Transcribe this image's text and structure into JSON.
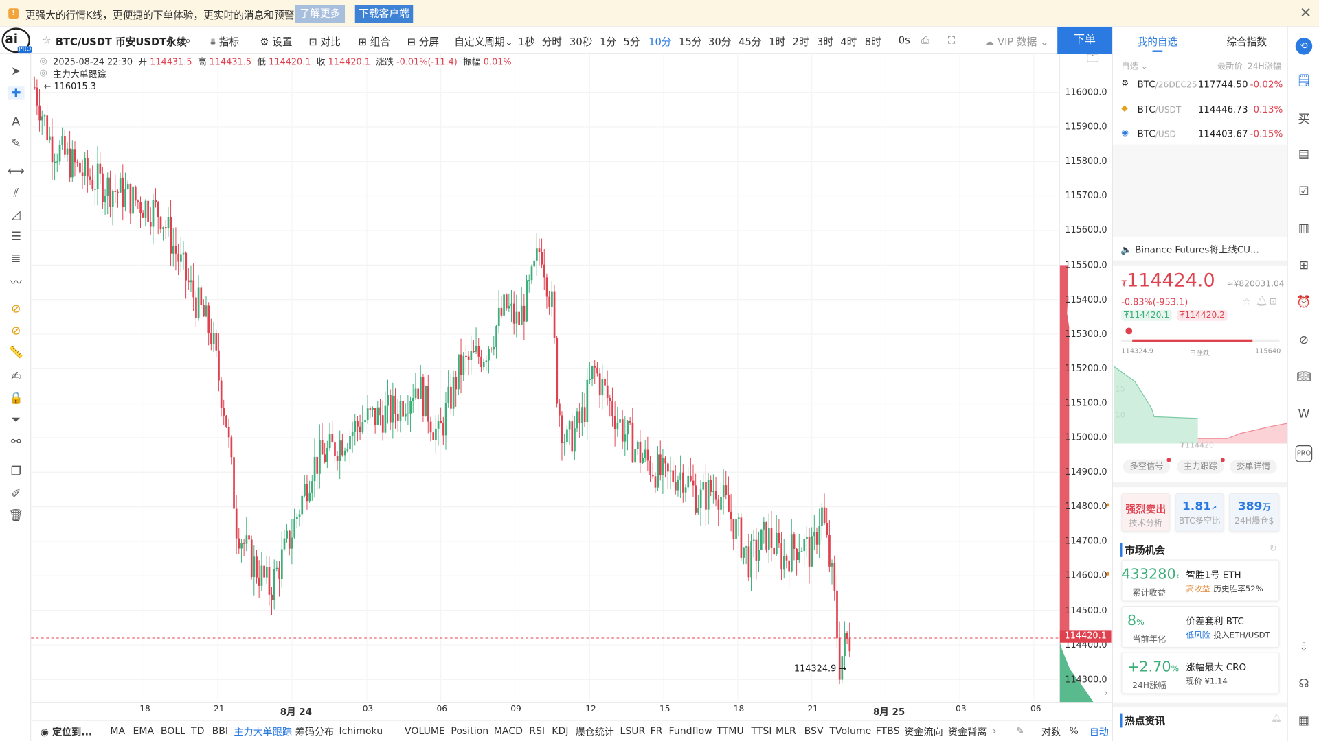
{
  "banner": {
    "message": "更强大的行情K线，更便捷的下单体验，更实时的消息和预警",
    "learn_more": "了解更多",
    "download": "下载客户端",
    "warn_icon": "!",
    "close_icon": "✕"
  },
  "logo": {
    "text": "ai",
    "badge": "PRO"
  },
  "toolbar": {
    "symbol": "BTC/USDT 币安USDT永续",
    "indicators": "指标",
    "settings": "设置",
    "compare": "对比",
    "combo": "组合",
    "split": "分屏",
    "custom_period": "自定义周期",
    "periods": [
      "1秒",
      "分时",
      "30秒",
      "1分",
      "5分",
      "10分",
      "15分",
      "30分",
      "45分",
      "1时",
      "2时",
      "3时",
      "4时",
      "8时"
    ],
    "active_period": "10分",
    "countdown": "0s",
    "vip": "VIP 数据",
    "order": "下单"
  },
  "candle_info": {
    "datetime": "2025-08-24 22:30",
    "open_label": "开",
    "open": "114431.5",
    "high_label": "高",
    "high": "114431.5",
    "low_label": "低",
    "low": "114420.1",
    "close_label": "收",
    "close": "114420.1",
    "change_label": "涨跌",
    "change": "-0.01%(-11.4)",
    "amp_label": "振幅",
    "amp": "0.01%",
    "tracker": "主力大单跟踪",
    "max_marker": "116015.3",
    "min_marker": "114324.9"
  },
  "price_axis": [
    "116000.0",
    "115900.0",
    "115800.0",
    "115700.0",
    "115600.0",
    "115500.0",
    "115400.0",
    "115300.0",
    "115200.0",
    "115100.0",
    "115000.0",
    "114900.0",
    "114800.0",
    "114700.0",
    "114600.0",
    "114500.0",
    "114400.0",
    "114300.0"
  ],
  "current_price": "114420.1",
  "time_axis": [
    {
      "t": "18",
      "bold": false
    },
    {
      "t": "21",
      "bold": false
    },
    {
      "t": "8月 24",
      "bold": true
    },
    {
      "t": "03",
      "bold": false
    },
    {
      "t": "06",
      "bold": false
    },
    {
      "t": "09",
      "bold": false
    },
    {
      "t": "12",
      "bold": false
    },
    {
      "t": "15",
      "bold": false
    },
    {
      "t": "18",
      "bold": false
    },
    {
      "t": "21",
      "bold": false
    },
    {
      "t": "8月 25",
      "bold": true
    },
    {
      "t": "03",
      "bold": false
    },
    {
      "t": "06",
      "bold": false
    }
  ],
  "bottom_bar": {
    "locate": "定位到...",
    "items": [
      "MA",
      "EMA",
      "BOLL",
      "TD",
      "BBI",
      "主力大单跟踪",
      "筹码分布",
      "Ichimoku",
      "VOLUME",
      "Position",
      "MACD",
      "RSI",
      "KDJ",
      "爆仓统计",
      "LSUR",
      "FR",
      "Fundflow",
      "TTMU",
      "TTSI",
      "MLR",
      "BSV",
      "TVolume",
      "FTBS",
      "资金流向",
      "资金背离"
    ],
    "active": "主力大单跟踪",
    "log": "对数",
    "pct": "%",
    "auto": "自动"
  },
  "right_panel": {
    "tabs": [
      "我的自选",
      "综合指数"
    ],
    "watch_header": {
      "col1": "自选",
      "col2": "最新价",
      "col3": "24H涨幅"
    },
    "watchlist": [
      {
        "sym": "BTC",
        "pair": "/26DEC25",
        "price": "117744.50",
        "chg": "-0.02%"
      },
      {
        "sym": "BTC",
        "pair": "/USDT",
        "price": "114446.73",
        "chg": "-0.13%"
      },
      {
        "sym": "BTC",
        "pair": "/USD",
        "price": "114403.67",
        "chg": "-0.15%"
      }
    ],
    "news": "Binance Futures将上线CU...",
    "big_price": "114424.0",
    "cny": "≈¥820031.04",
    "change": "-0.83%(-953.1)",
    "bid": "₮114420.1",
    "ask": "₮114420.2",
    "range_low": "114324.9",
    "range_label": "日涨跌",
    "range_high": "115640",
    "depth_y1": "15",
    "depth_y2": "10",
    "depth_price": "₮114420",
    "pills": [
      "多空信号",
      "主力跟踪",
      "委单详情"
    ],
    "stats": [
      {
        "v": "强烈卖出",
        "l": "技术分析"
      },
      {
        "v": "1.81",
        "l": "BTC多空比"
      },
      {
        "v": "389",
        "u": "万",
        "l": "24H爆仓$"
      }
    ],
    "market_title": "市场机会",
    "opps": [
      {
        "num": "433280",
        "unit": "‹",
        "sub": "累计收益",
        "title": "智胜1号 ETH",
        "tag": "高收益",
        "desc": "历史胜率52%"
      },
      {
        "num": "8",
        "unit": "%",
        "sub": "当前年化",
        "title": "价差套利 BTC",
        "tag": "低风险",
        "desc": "投入ETH/USDT"
      },
      {
        "num": "+2.70",
        "unit": "%",
        "sub": "24H涨幅",
        "title": "涨幅最大 CRO",
        "tag": "",
        "desc": "现价 ¥1.14"
      }
    ],
    "hot_title": "热点资讯"
  },
  "colors": {
    "up": "#3bae79",
    "down": "#e0414f",
    "accent": "#2a7ae2"
  }
}
